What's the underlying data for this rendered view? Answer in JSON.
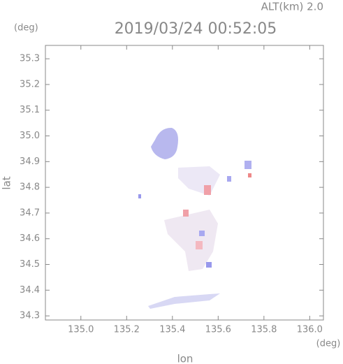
{
  "chart_data": {
    "type": "map",
    "title": "2019/03/24 00:52:05",
    "altitude_label": "ALT(km) 2.0",
    "y_unit": "(deg)",
    "x_unit": "(deg)",
    "xlabel": "lon",
    "ylabel": "lat",
    "xlim": [
      134.845,
      136.06
    ],
    "ylim": [
      34.284,
      35.352
    ],
    "xticks": [
      {
        "value": 135,
        "label": "135.0"
      },
      135.2,
      135.4,
      135.6,
      135.8,
      {
        "value": 136,
        "label": "136.0"
      }
    ],
    "yticks": [
      34.3,
      34.4,
      34.5,
      34.6,
      34.7,
      34.8,
      34.9,
      {
        "value": 35,
        "label": "35.0"
      },
      35.1,
      35.2,
      35.3
    ]
  }
}
